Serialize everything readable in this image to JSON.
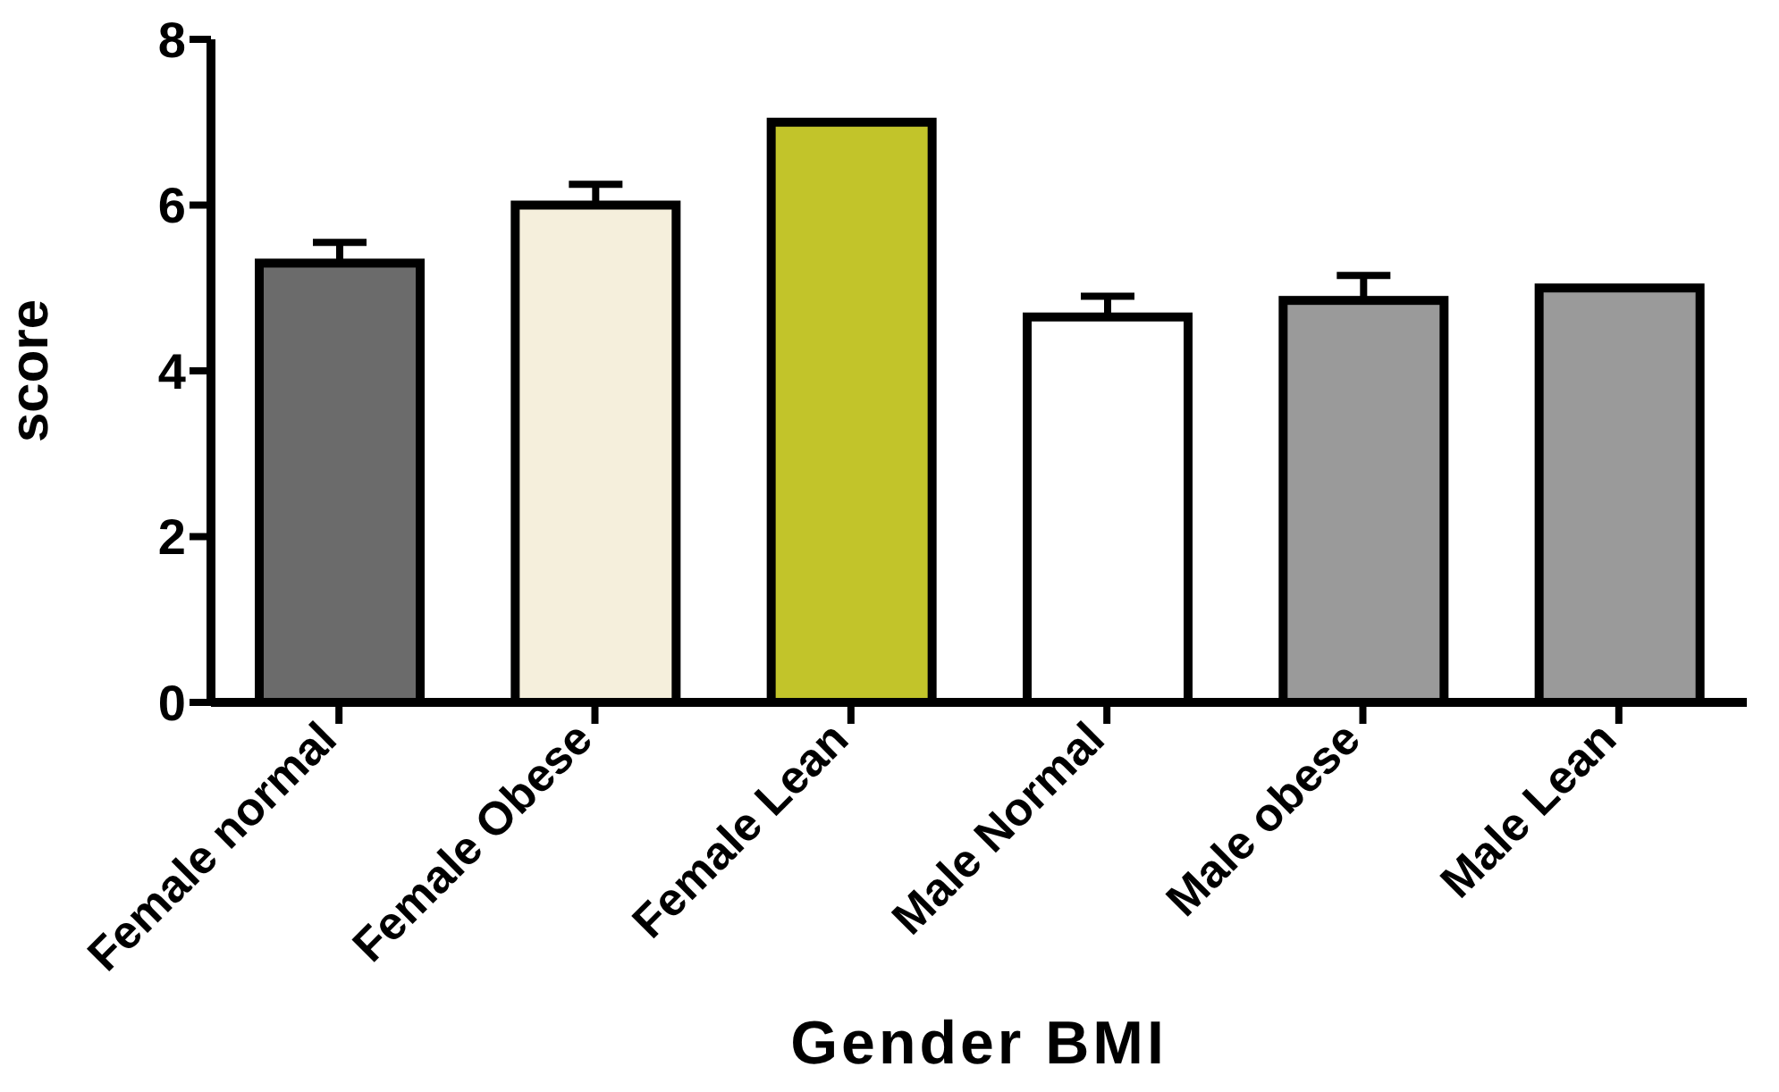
{
  "chart_data": {
    "type": "bar",
    "xlabel": "Gender BMI",
    "ylabel": "score",
    "categories": [
      "Female normal",
      "Female Obese",
      "Female Lean",
      "Male Normal",
      "Male obese",
      "Male Lean"
    ],
    "values": [
      5.3,
      6.0,
      7.0,
      4.65,
      4.85,
      5.0
    ],
    "errors": [
      [
        5.3,
        5.55
      ],
      [
        6.0,
        6.25
      ],
      null,
      [
        4.65,
        4.9
      ],
      [
        4.85,
        5.15
      ],
      null
    ],
    "colors": [
      "#6b6b6b",
      "#f5efdc",
      "#c2c42a",
      "#ffffff",
      "#9a9a9a",
      "#9a9a9a"
    ],
    "ylim": [
      0,
      8
    ],
    "yticks": [
      0,
      2,
      4,
      6,
      8
    ],
    "grid": false,
    "legend": false
  }
}
